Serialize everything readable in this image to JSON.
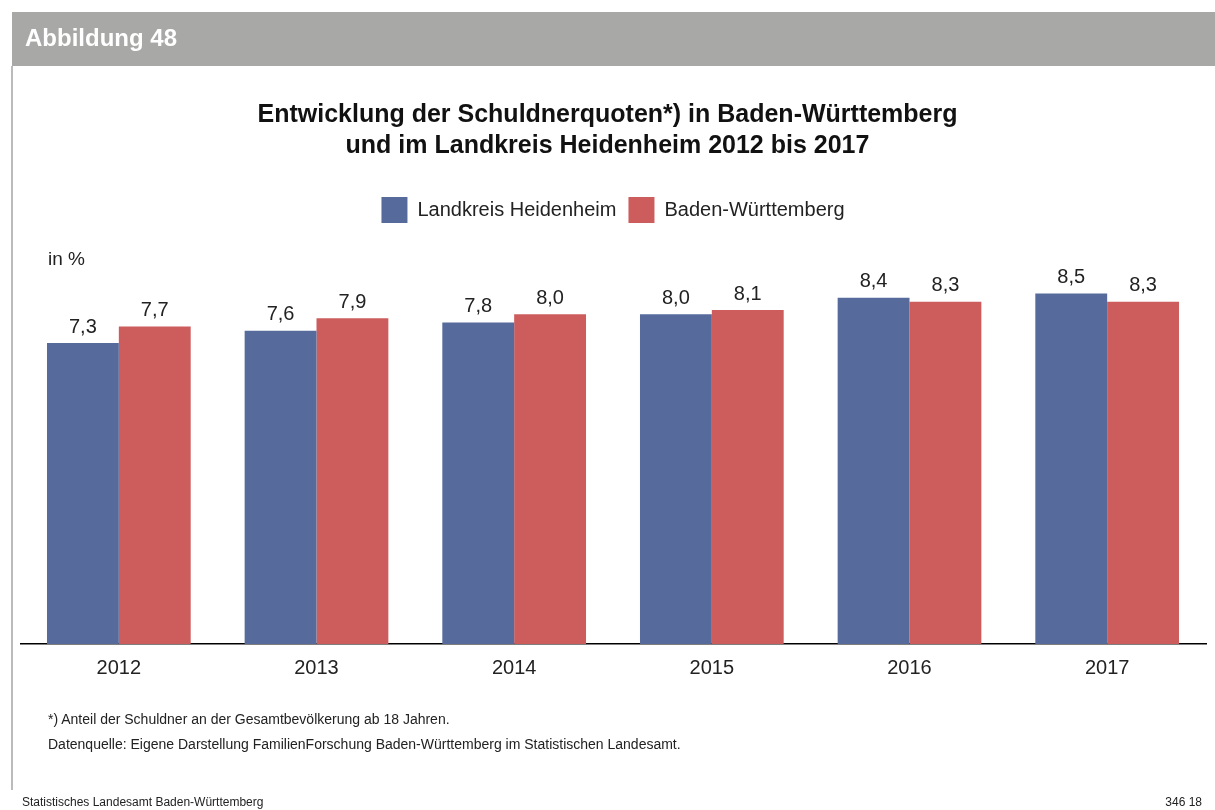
{
  "chart_data": {
    "type": "bar",
    "title": "Entwicklung der Schuldnerquoten*) in Baden-Württemberg\nund im Landkreis Heidenheim 2012 bis 2017",
    "categories": [
      "2012",
      "2013",
      "2014",
      "2015",
      "2016",
      "2017"
    ],
    "series": [
      {
        "name": "Landkreis Heidenheim",
        "color": "#566b9c",
        "values": [
          7.3,
          7.6,
          7.8,
          8.0,
          8.4,
          8.5
        ],
        "value_labels": [
          "7,3",
          "7,6",
          "7,8",
          "8,0",
          "8,4",
          "8,5"
        ]
      },
      {
        "name": "Baden-Württemberg",
        "color": "#cd5c5c",
        "values": [
          7.7,
          7.9,
          8.0,
          8.1,
          8.3,
          8.3
        ],
        "value_labels": [
          "7,7",
          "7,9",
          "8,0",
          "8,1",
          "8,3",
          "8,3"
        ]
      }
    ],
    "legend": "top",
    "grid": false,
    "annotations": [
      "Abbildung 48",
      "*) Anteil der Schuldner an der Gesamtbevölkerung ab 18 Jahren.",
      "Datenquelle: Eigene Darstellung FamilienForschung Baden-Württemberg im Statistischen Landesamt.",
      "Statistisches Landesamt Baden-Württemberg",
      "346 18",
      "in %"
    ]
  }
}
